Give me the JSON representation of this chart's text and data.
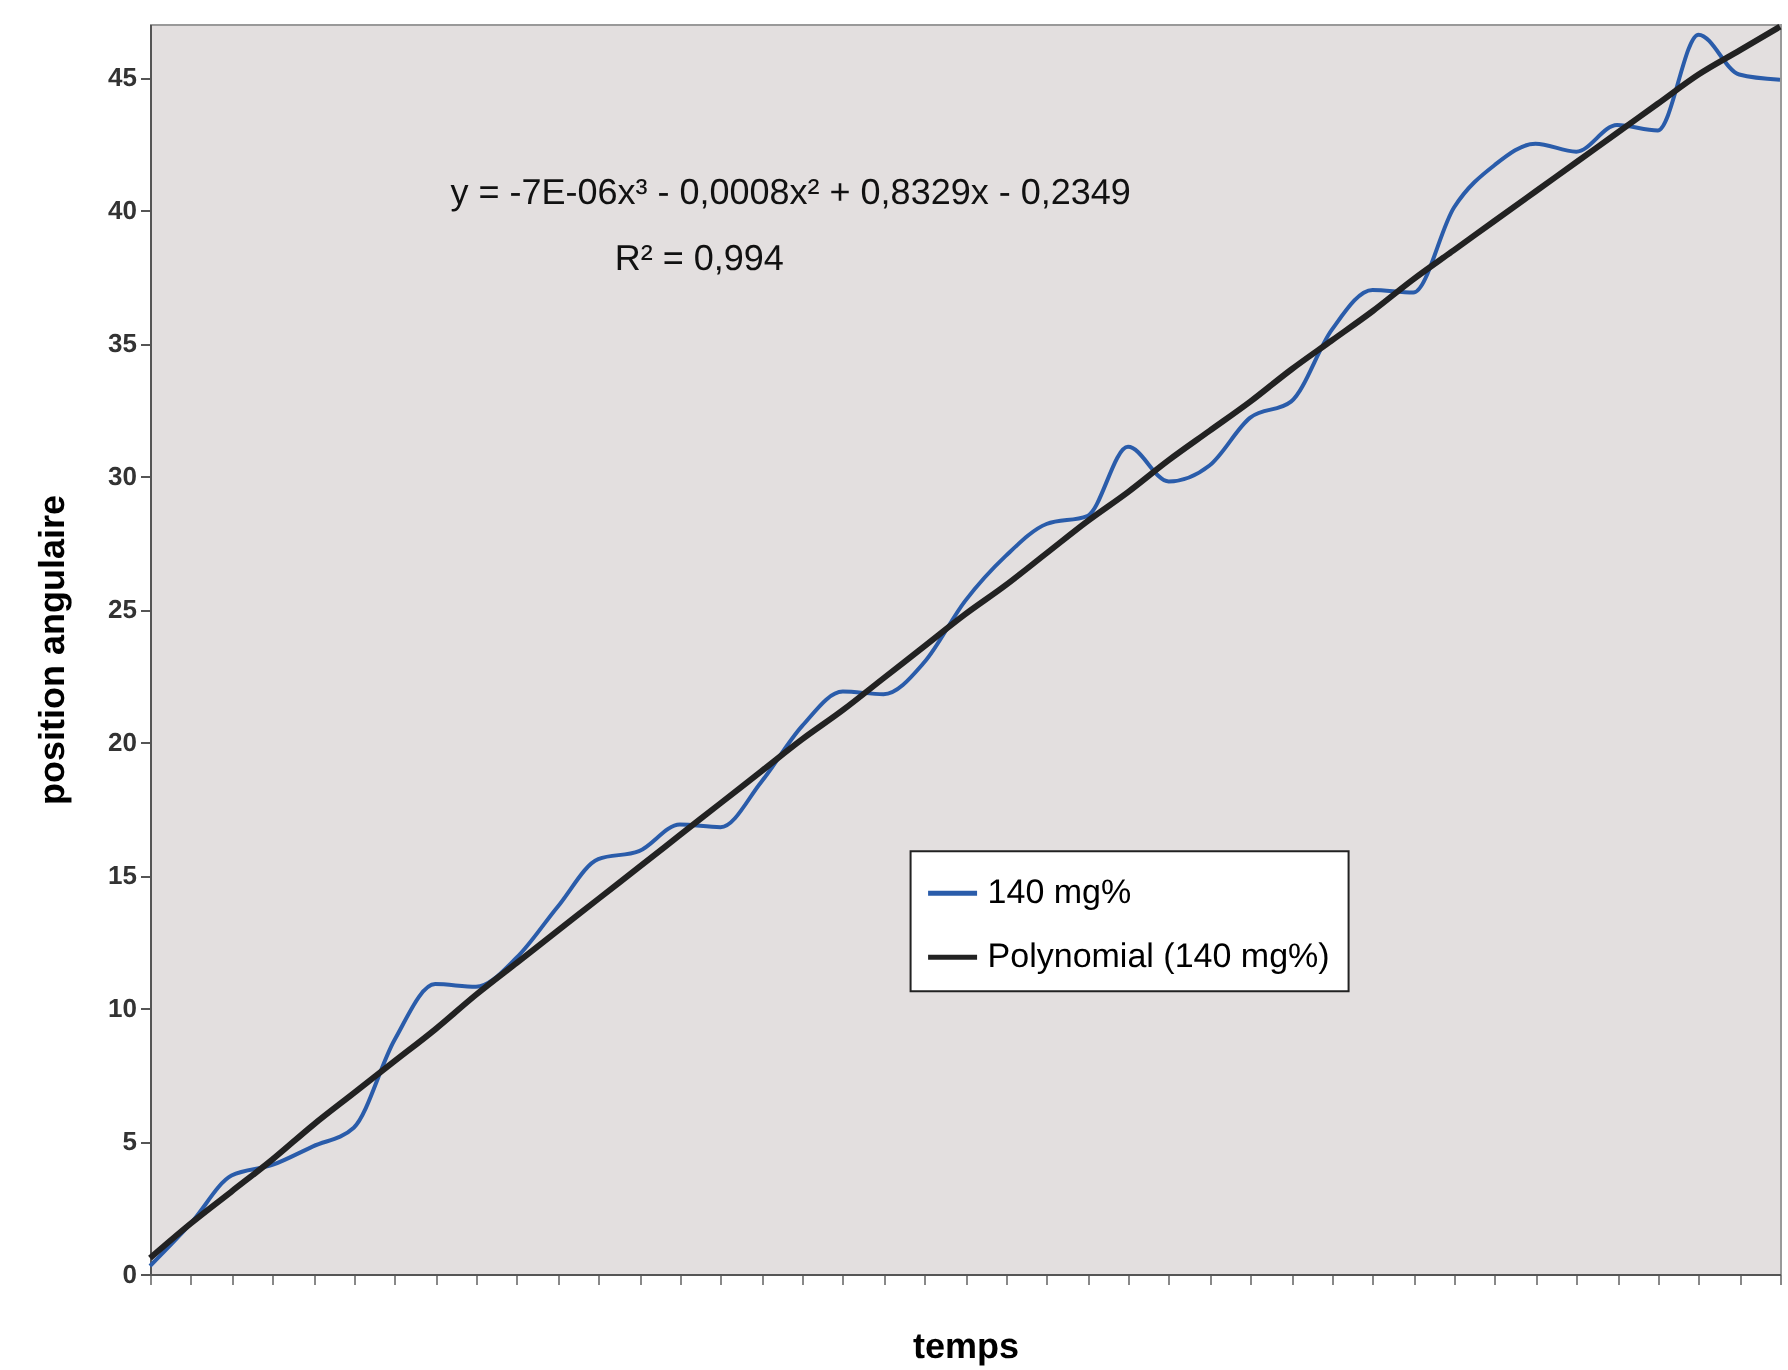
{
  "chart_data": {
    "type": "line",
    "xlabel": "temps",
    "ylabel": "position angulaire",
    "annotations": [
      "y = -7E-06x³ - 0,0008x² + 0,8329x - 0,2349",
      "R² = 0,994"
    ],
    "categories": [
      null,
      null,
      null,
      null,
      null,
      null,
      null,
      null,
      null,
      null,
      null,
      null,
      null,
      null,
      null,
      null,
      null,
      null,
      null,
      null,
      null,
      null,
      null,
      null,
      null,
      null,
      null,
      null,
      null,
      null,
      null,
      null,
      null,
      null,
      null,
      null,
      null,
      null,
      null,
      null,
      null
    ],
    "series": [
      {
        "name": "140 mg%",
        "color": "#2a5caa",
        "values": [
          0.3,
          1.9,
          3.7,
          4.1,
          4.8,
          5.5,
          8.8,
          10.9,
          10.8,
          11.9,
          13.8,
          15.6,
          15.9,
          16.9,
          16.8,
          18.5,
          20.6,
          21.9,
          21.8,
          23.0,
          25.3,
          27.0,
          28.2,
          28.5,
          31.1,
          29.8,
          30.4,
          32.2,
          32.8,
          35.5,
          37.0,
          36.9,
          40.1,
          41.7,
          42.5,
          42.2,
          43.2,
          43.0,
          46.6,
          45.1,
          44.9
        ]
      },
      {
        "name": "Polynomial (140 mg%)",
        "color": "#222222",
        "values": [
          0.6,
          1.9,
          3.1,
          4.3,
          5.6,
          6.8,
          8.0,
          9.2,
          10.5,
          11.7,
          12.9,
          14.1,
          15.3,
          16.5,
          17.7,
          18.9,
          20.1,
          21.2,
          22.4,
          23.6,
          24.8,
          25.9,
          27.1,
          28.3,
          29.4,
          30.6,
          31.7,
          32.8,
          34.0,
          35.1,
          36.2,
          37.4,
          38.5,
          39.6,
          40.7,
          41.8,
          42.9,
          44.0,
          45.1,
          46.0,
          46.9
        ]
      }
    ],
    "ylim": [
      0,
      47
    ],
    "yticks": [
      0,
      5,
      10,
      15,
      20,
      25,
      30,
      35,
      40,
      45
    ],
    "legend": "bottom right",
    "tick_labels": "y",
    "grid": false
  }
}
